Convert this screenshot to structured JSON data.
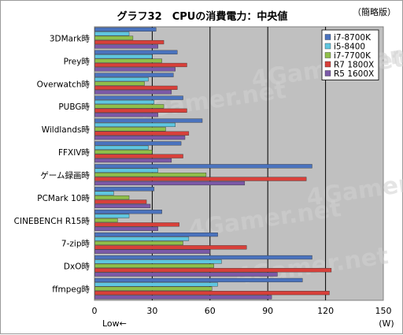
{
  "chart_data": {
    "type": "bar",
    "orientation": "horizontal",
    "title": "グラフ32　CPUの消費電力：中央値",
    "note": "（簡略版）",
    "categories": [
      "3DMark時",
      "Prey時",
      "Overwatch時",
      "PUBG時",
      "Wildlands時",
      "FFXIV時",
      "ゲーム録画時",
      "PCMark 10時",
      "CINEBENCH R15時",
      "7-zip時",
      "DxO時",
      "ffmpeg時"
    ],
    "series": [
      {
        "name": "i7-8700K",
        "color": "#4a73be",
        "values": [
          32,
          43,
          41,
          46,
          56,
          45,
          113,
          31,
          35,
          64,
          113,
          108
        ]
      },
      {
        "name": "i5-8400",
        "color": "#5fc6e0",
        "values": [
          18,
          30,
          28,
          31,
          42,
          28,
          33,
          10,
          18,
          49,
          66,
          64
        ]
      },
      {
        "name": "i7-7700K",
        "color": "#8fbf4a",
        "values": [
          20,
          35,
          26,
          36,
          37,
          30,
          58,
          18,
          12,
          46,
          62,
          61
        ]
      },
      {
        "name": "R7 1800X",
        "color": "#d8403a",
        "values": [
          36,
          48,
          43,
          48,
          49,
          46,
          110,
          27,
          44,
          79,
          123,
          122
        ]
      },
      {
        "name": "R5 1600X",
        "color": "#7b59a8",
        "values": [
          33,
          42,
          40,
          33,
          47,
          40,
          78,
          29,
          33,
          60,
          95,
          92
        ]
      }
    ],
    "xlim": [
      0,
      150
    ],
    "xticks": [
      0,
      30,
      60,
      90,
      120,
      150
    ],
    "xlabel_left": "Low←",
    "xunit": "(W)",
    "grid": true,
    "legend_position": "top-right",
    "watermark": "4Gamer.net"
  }
}
